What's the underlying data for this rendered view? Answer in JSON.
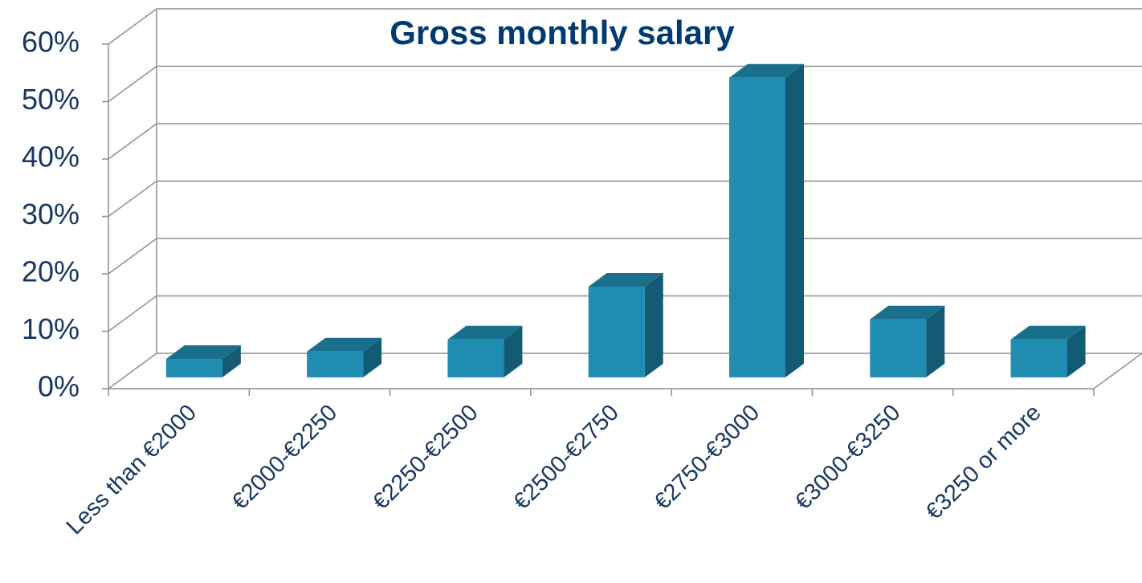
{
  "chart_data": {
    "type": "bar3d",
    "title": "Gross monthly salary",
    "categories": [
      "Less than €2000",
      "€2000-€2250",
      "€2250-€2500",
      "€2500-€2750",
      "€2750-€3000",
      "€3000-€3250",
      "€3250 or more"
    ],
    "values": [
      3.2,
      4.5,
      6.6,
      15.8,
      52.2,
      10.1,
      6.6
    ],
    "color": "#1f8db2",
    "ylim": [
      0,
      60
    ],
    "yticks": [
      {
        "value": 0,
        "label": "0%"
      },
      {
        "value": 10,
        "label": "10%"
      },
      {
        "value": 20,
        "label": "20%"
      },
      {
        "value": 30,
        "label": "30%"
      },
      {
        "value": 40,
        "label": "40%"
      },
      {
        "value": 50,
        "label": "50%"
      },
      {
        "value": 60,
        "label": "60%"
      }
    ],
    "grid": true
  }
}
